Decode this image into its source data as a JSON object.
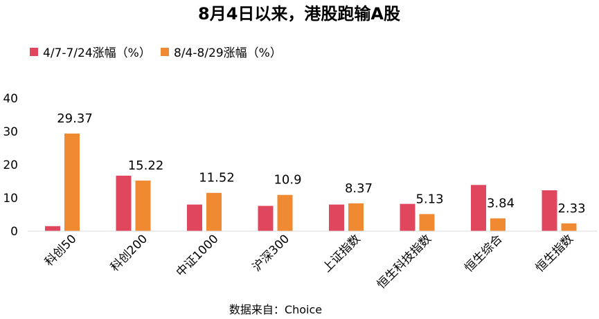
{
  "chart_data": {
    "type": "bar",
    "title": "8月4日以来，港股跑输A股",
    "categories": [
      "科创50",
      "科创200",
      "中证1000",
      "沪深300",
      "上证指数",
      "恒生科技指数",
      "恒生综合",
      "恒生指数"
    ],
    "series": [
      {
        "name": "4/7-7/24涨幅（%）",
        "color": "#e0475e",
        "values": [
          1.5,
          16.7,
          8.0,
          7.6,
          8.0,
          8.2,
          13.9,
          12.3
        ]
      },
      {
        "name": "8/4-8/29涨幅（%）",
        "color": "#ef8a32",
        "values": [
          29.37,
          15.22,
          11.52,
          10.9,
          8.37,
          5.13,
          3.84,
          2.33
        ]
      }
    ],
    "data_labels": [
      "29.37",
      "15.22",
      "11.52",
      "10.9",
      "8.37",
      "5.13",
      "3.84",
      "2.33"
    ],
    "yticks": [
      0,
      10,
      20,
      30,
      40
    ],
    "ylim": [
      0,
      40
    ],
    "grid": false,
    "legend_position": "top-left",
    "source": "数据来自：Choice"
  }
}
